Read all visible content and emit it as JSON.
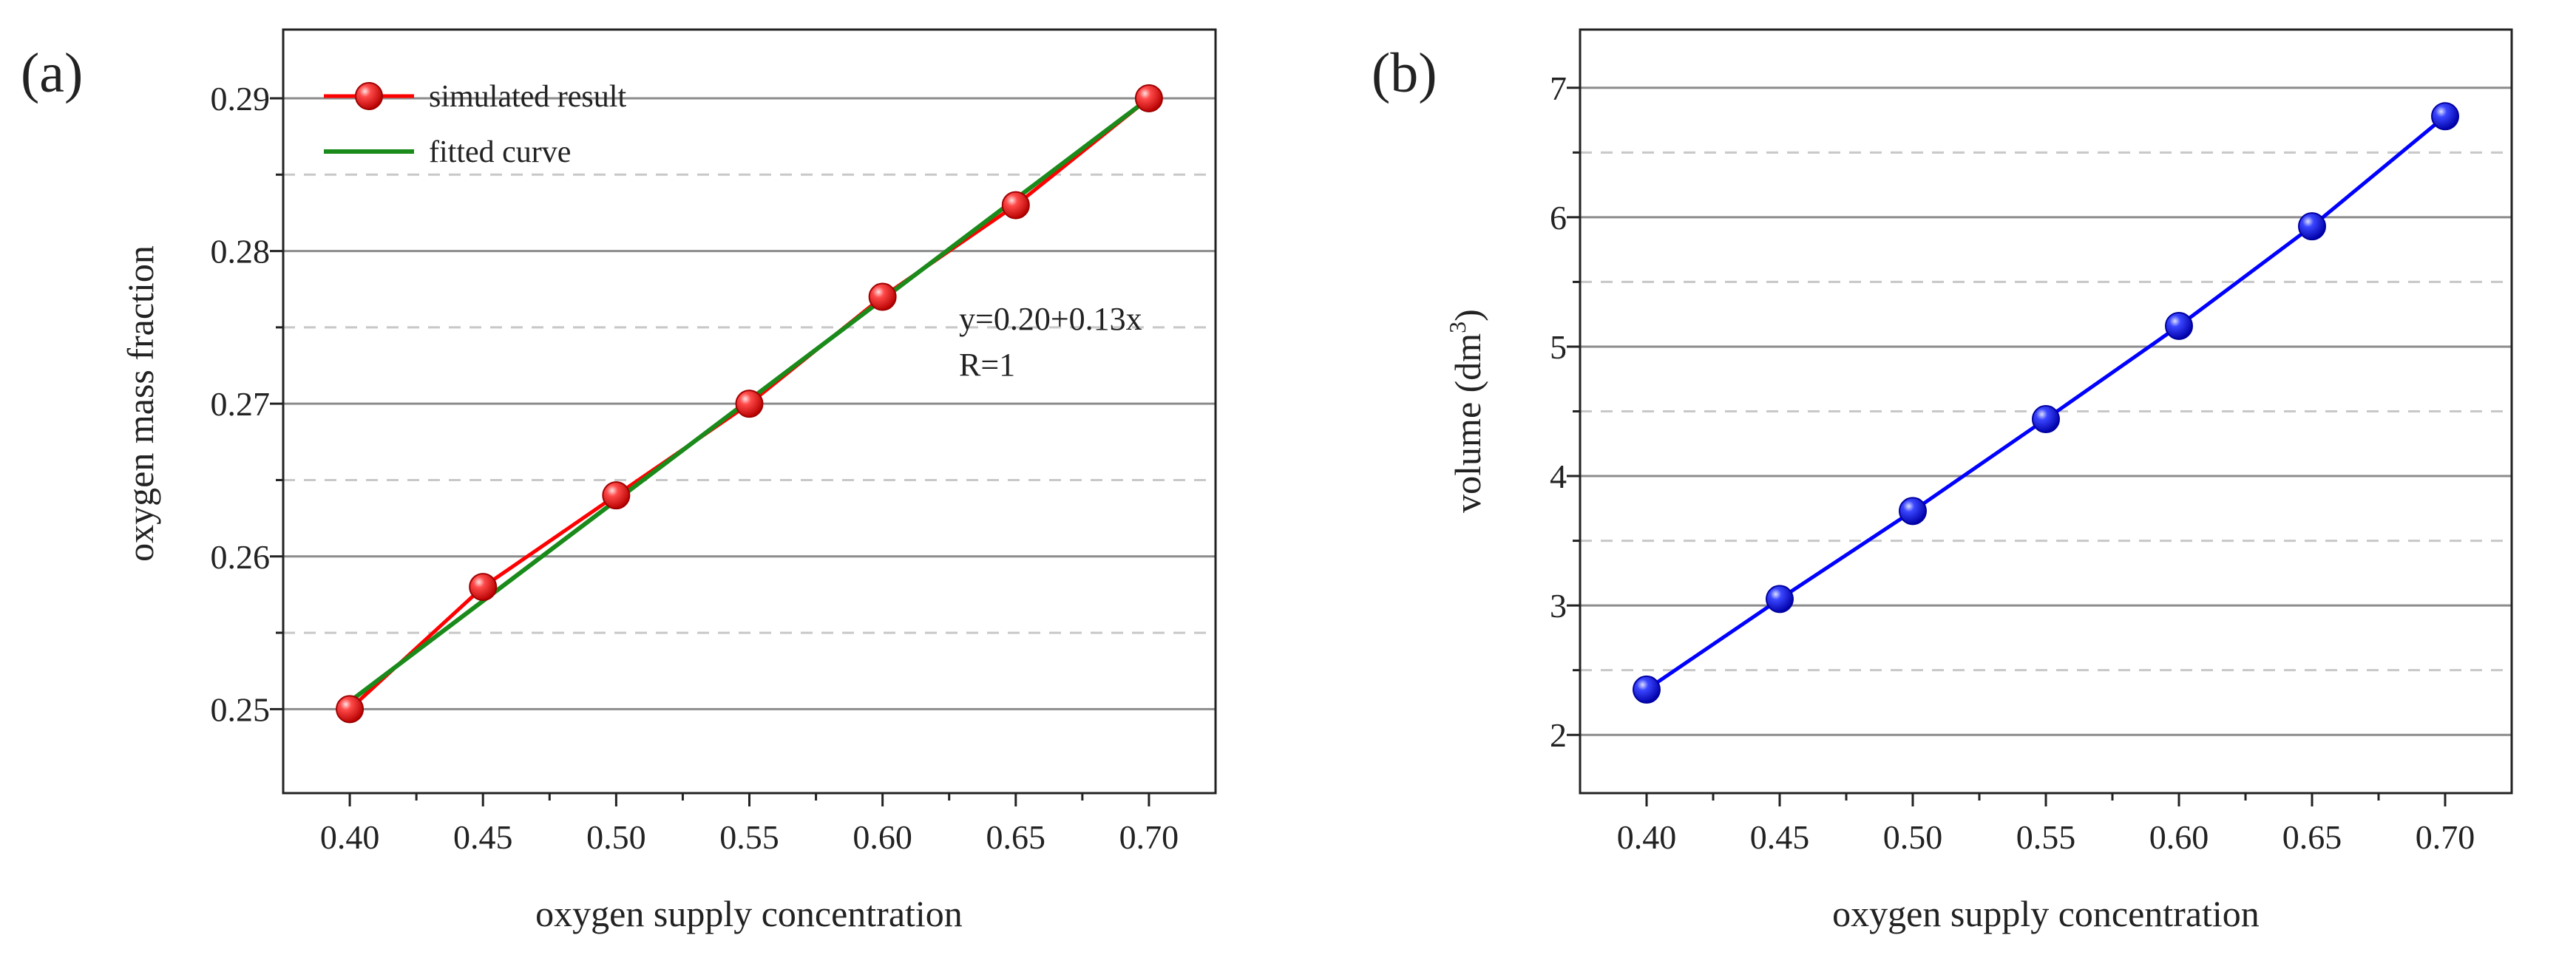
{
  "chart_data": [
    {
      "panel_label": "(a)",
      "type": "line",
      "xlabel": "oxygen supply concentration",
      "ylabel": "oxygen mass fraction",
      "xlim": [
        0.375,
        0.725
      ],
      "ylim": [
        0.2445,
        0.2945
      ],
      "xticks": [
        "0.40",
        "0.45",
        "0.50",
        "0.55",
        "0.60",
        "0.65",
        "0.70"
      ],
      "yticks": [
        "0.25",
        "0.26",
        "0.27",
        "0.28",
        "0.29"
      ],
      "major_grid": [
        0.25,
        0.26,
        0.27,
        0.28,
        0.29
      ],
      "minor_grid": [
        0.255,
        0.265,
        0.275,
        0.285
      ],
      "legend_position": "top-left",
      "series": [
        {
          "name": "simulated result",
          "color": "#ff0000",
          "marker": "sphere",
          "x": [
            0.4,
            0.45,
            0.5,
            0.55,
            0.6,
            0.65,
            0.7
          ],
          "y": [
            0.25,
            0.258,
            0.264,
            0.27,
            0.277,
            0.283,
            0.29
          ]
        },
        {
          "name": "fitted curve",
          "color": "#1a8a1a",
          "marker": "none",
          "x": [
            0.4,
            0.7
          ],
          "y": [
            0.2505,
            0.29
          ]
        }
      ],
      "annotations": [
        "y=0.20+0.13x",
        "R=1"
      ]
    },
    {
      "panel_label": "(b)",
      "type": "line",
      "xlabel": "oxygen supply concentration",
      "ylabel": "volume (dm",
      "ylabel_sup": "3",
      "ylabel_close": ")",
      "xlim": [
        0.375,
        0.725
      ],
      "ylim": [
        1.55,
        7.45
      ],
      "xticks": [
        "0.40",
        "0.45",
        "0.50",
        "0.55",
        "0.60",
        "0.65",
        "0.70"
      ],
      "yticks": [
        "2",
        "3",
        "4",
        "5",
        "6",
        "7"
      ],
      "major_grid": [
        2,
        3,
        4,
        5,
        6,
        7
      ],
      "minor_grid": [
        2.5,
        3.5,
        4.5,
        5.5,
        6.5
      ],
      "series": [
        {
          "name": "volume",
          "color": "#0000ff",
          "marker": "sphere",
          "x": [
            0.4,
            0.45,
            0.5,
            0.55,
            0.6,
            0.65,
            0.7
          ],
          "y": [
            2.35,
            3.05,
            3.73,
            4.44,
            5.16,
            5.93,
            6.78
          ]
        }
      ]
    }
  ]
}
